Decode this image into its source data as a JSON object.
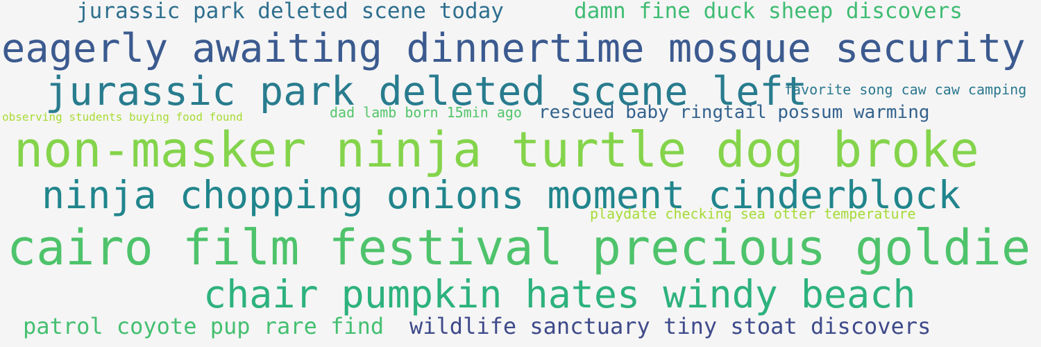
{
  "phrases": [
    {
      "text": "jurassic park deleted scene today",
      "color": "#2e6f8e"
    },
    {
      "text": "damn fine duck sheep discovers",
      "color": "#3fbc73"
    },
    {
      "text": "eagerly awaiting dinnertime mosque security",
      "color": "#3b5a8f"
    },
    {
      "text": "jurassic park deleted scene left",
      "color": "#287c8e"
    },
    {
      "text": "favorite song caw caw camping",
      "color": "#2a788e"
    },
    {
      "text": "observing students buying food found",
      "color": "#a8db34"
    },
    {
      "text": "dad lamb born 15min ago",
      "color": "#52c569"
    },
    {
      "text": "rescued baby ringtail possum warming",
      "color": "#33628d"
    },
    {
      "text": "non-masker ninja turtle dog broke",
      "color": "#84d44b"
    },
    {
      "text": "ninja chopping onions moment cinderblock",
      "color": "#21858c"
    },
    {
      "text": "playdate checking sea otter temperature",
      "color": "#a5db36"
    },
    {
      "text": "cairo film festival precious goldie",
      "color": "#4ec36b"
    },
    {
      "text": "chair pumpkin hates windy beach",
      "color": "#2db27d"
    },
    {
      "text": "patrol coyote pup rare find",
      "color": "#44bf70"
    },
    {
      "text": "wildlife sanctuary tiny stoat discovers",
      "color": "#3e4a89"
    }
  ]
}
